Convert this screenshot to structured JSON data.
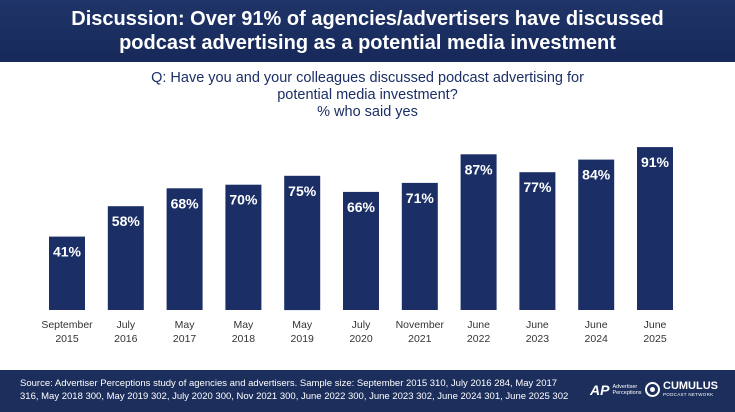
{
  "header": {
    "line1": "Discussion: Over 91% of agencies/advertisers have discussed",
    "line2": "podcast advertising as a potential media investment"
  },
  "question": {
    "line1": "Q: Have you and your colleagues discussed podcast advertising for",
    "line2": "potential media investment?",
    "line3": "% who said yes"
  },
  "chart_data": {
    "type": "bar",
    "categories": [
      [
        "September",
        "2015"
      ],
      [
        "July",
        "2016"
      ],
      [
        "May",
        "2017"
      ],
      [
        "May",
        "2018"
      ],
      [
        "May",
        "2019"
      ],
      [
        "July",
        "2020"
      ],
      [
        "November",
        "2021"
      ],
      [
        "June",
        "2022"
      ],
      [
        "June",
        "2023"
      ],
      [
        "June",
        "2024"
      ],
      [
        "June",
        "2025"
      ]
    ],
    "values": [
      41,
      58,
      68,
      70,
      75,
      66,
      71,
      87,
      77,
      84,
      91
    ],
    "data_labels": [
      "41%",
      "58%",
      "68%",
      "70%",
      "75%",
      "66%",
      "71%",
      "87%",
      "77%",
      "84%",
      "91%"
    ],
    "ylim": [
      0,
      100
    ],
    "grid": false,
    "bar_color": "#1b2f66"
  },
  "footer": {
    "source_line1": "Source: Advertiser Perceptions study of agencies and advertisers. Sample size: September 2015 310, July 2016 284, May 2017",
    "source_line2": "316, May 2018 300, May 2019 302, July 2020 300, Nov 2021 300, June 2022 300, June 2023 302, June 2024 301, June 2025 302",
    "logo_ap_mark": "AP",
    "logo_ap_text1": "Advertiser",
    "logo_ap_text2": "Perceptions",
    "logo_cumulus_name": "CUMULUS",
    "logo_cumulus_sub": "PODCAST NETWORK"
  }
}
